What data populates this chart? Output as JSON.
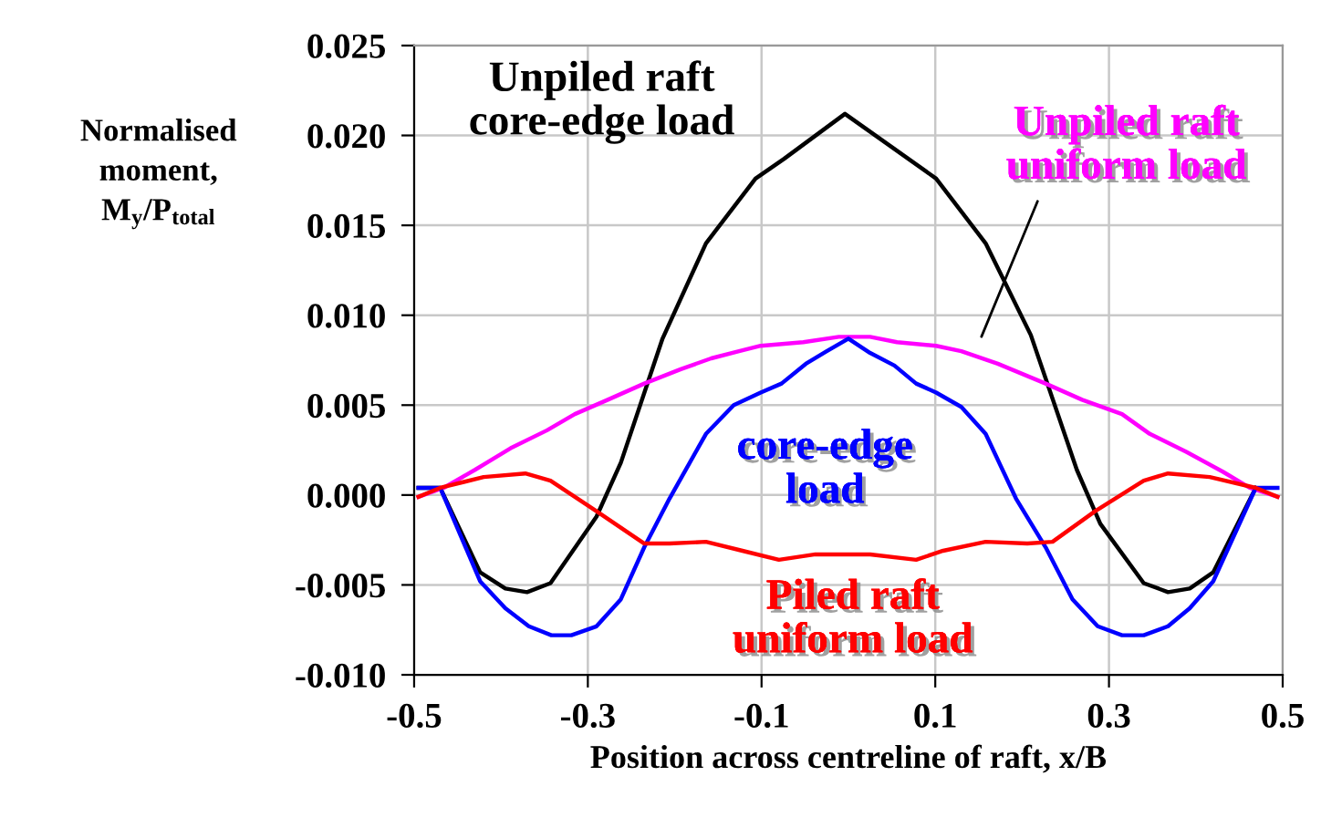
{
  "chart_data": {
    "type": "line",
    "xlabel": "Position across centreline of raft, x/B",
    "ylabel": "Normalised\nmoment,\nM$_{y}$/P$_{total}$",
    "xlim": [
      -0.5,
      0.5
    ],
    "xticks": [
      -0.5,
      -0.3,
      -0.1,
      0.1,
      0.3,
      0.5
    ],
    "ylim": [
      -0.01,
      0.025
    ],
    "yticks": [
      {
        "value": -0.01,
        "label": "-0.010"
      },
      {
        "value": -0.005,
        "label": "-0.005"
      },
      {
        "value": 0,
        "label": "0.000"
      },
      {
        "value": 0.005,
        "label": "0.005"
      },
      {
        "value": 0.01,
        "label": "0.010"
      },
      {
        "value": 0.015,
        "label": "0.015"
      },
      {
        "value": 0.02,
        "label": "0.020"
      },
      {
        "value": 0.025,
        "label": "0.025"
      }
    ],
    "grid": true,
    "marker": "none",
    "line_style": "solid",
    "series": [
      {
        "name": "Unpiled raft\ncore-edge load",
        "color": "#000000",
        "x": [
          -0.495,
          -0.47,
          -0.424,
          -0.395,
          -0.37,
          -0.343,
          -0.29,
          -0.262,
          -0.214,
          -0.164,
          -0.107,
          -0.074,
          -0.004,
          0.101,
          0.158,
          0.21,
          0.263,
          0.29,
          0.34,
          0.368,
          0.393,
          0.42,
          0.469
        ],
        "values": [
          0.0004,
          0.0004,
          -0.0043,
          -0.0052,
          -0.0054,
          -0.0049,
          -0.0012,
          0.0018,
          0.0087,
          0.014,
          0.0176,
          0.0187,
          0.0212,
          0.0176,
          0.014,
          0.0089,
          0.0014,
          -0.0016,
          -0.0049,
          -0.0054,
          -0.0052,
          -0.0043,
          0.0004
        ]
      },
      {
        "name": "Unpiled raft\nuniform load",
        "color": "#ff00ff",
        "x": [
          -0.495,
          -0.466,
          -0.43,
          -0.389,
          -0.347,
          -0.315,
          -0.277,
          -0.235,
          -0.193,
          -0.158,
          -0.126,
          -0.101,
          -0.052,
          -0.011,
          0.025,
          0.056,
          0.101,
          0.13,
          0.172,
          0.227,
          0.269,
          0.315,
          0.347,
          0.389,
          0.431,
          0.462,
          0.494
        ],
        "values": [
          -0.0001,
          0.0004,
          0.0014,
          0.0026,
          0.0036,
          0.0045,
          0.0053,
          0.0062,
          0.007,
          0.0076,
          0.008,
          0.0083,
          0.0085,
          0.0088,
          0.0088,
          0.0085,
          0.0083,
          0.008,
          0.0073,
          0.0062,
          0.0053,
          0.0045,
          0.0034,
          0.0024,
          0.0013,
          0.0004,
          -0.0001
        ]
      },
      {
        "name": "core-edge\nload",
        "color": "#0000ff",
        "x": [
          -0.495,
          -0.47,
          -0.424,
          -0.395,
          -0.368,
          -0.342,
          -0.319,
          -0.29,
          -0.262,
          -0.235,
          -0.206,
          -0.164,
          -0.132,
          -0.101,
          -0.077,
          -0.049,
          -0.025,
          0,
          0.025,
          0.053,
          0.078,
          0.101,
          0.13,
          0.158,
          0.193,
          0.227,
          0.258,
          0.287,
          0.315,
          0.34,
          0.368,
          0.393,
          0.42,
          0.469,
          0.494
        ],
        "values": [
          0.0004,
          0.0004,
          -0.0048,
          -0.0063,
          -0.0073,
          -0.0078,
          -0.0078,
          -0.0073,
          -0.0058,
          -0.0029,
          -0.0002,
          0.0034,
          0.005,
          0.0057,
          0.0062,
          0.0073,
          0.008,
          0.0087,
          0.0079,
          0.0072,
          0.0062,
          0.0057,
          0.0049,
          0.0034,
          -0.0002,
          -0.0029,
          -0.0058,
          -0.0073,
          -0.0078,
          -0.0078,
          -0.0073,
          -0.0063,
          -0.0048,
          0.0004,
          0.0004
        ]
      },
      {
        "name": "Piled raft\nuniform load",
        "color": "#ff0000",
        "x": [
          -0.495,
          -0.47,
          -0.42,
          -0.372,
          -0.343,
          -0.29,
          -0.235,
          -0.206,
          -0.164,
          -0.122,
          -0.08,
          -0.038,
          0.011,
          0.025,
          0.078,
          0.109,
          0.158,
          0.206,
          0.235,
          0.284,
          0.34,
          0.368,
          0.416,
          0.469,
          0.494
        ],
        "values": [
          -0.0001,
          0.0004,
          0.001,
          0.0012,
          0.0008,
          -0.0009,
          -0.0027,
          -0.0027,
          -0.0026,
          -0.0031,
          -0.0036,
          -0.0033,
          -0.0033,
          -0.0033,
          -0.0036,
          -0.0031,
          -0.0026,
          -0.0027,
          -0.0026,
          -0.0009,
          0.0008,
          0.0012,
          0.001,
          0.0004,
          -0.0001
        ]
      }
    ]
  }
}
